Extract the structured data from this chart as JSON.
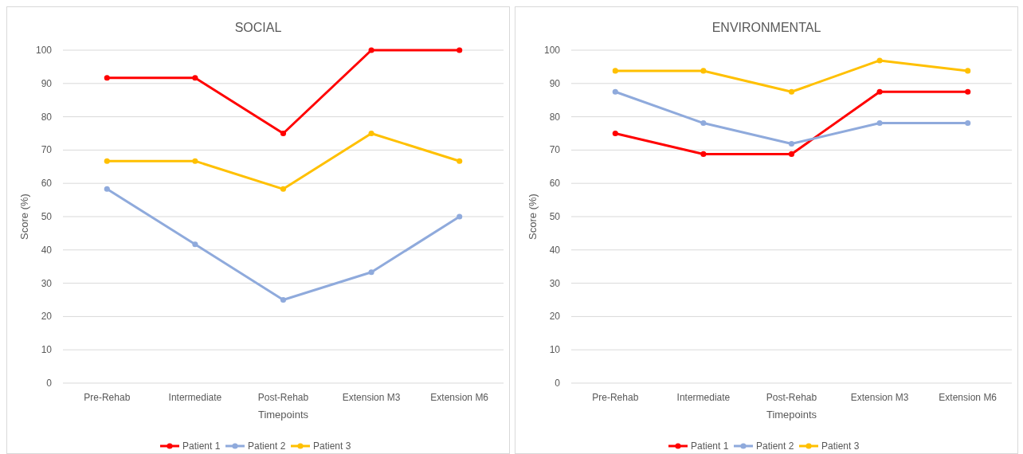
{
  "chart_data": [
    {
      "type": "line",
      "title": "SOCIAL",
      "xlabel": "Timepoints",
      "ylabel": "Score  (%)",
      "categories": [
        "Pre-Rehab",
        "Intermediate",
        "Post-Rehab",
        "Extension M3",
        "Extension M6"
      ],
      "series": [
        {
          "name": "Patient 1",
          "color": "#ff0000",
          "values": [
            91.7,
            91.7,
            75,
            100,
            100
          ]
        },
        {
          "name": "Patient 2",
          "color": "#8faadc",
          "values": [
            58.3,
            41.7,
            25,
            33.3,
            50
          ]
        },
        {
          "name": "Patient 3",
          "color": "#ffc000",
          "values": [
            66.7,
            66.7,
            58.3,
            75,
            66.7
          ]
        }
      ],
      "ylim": [
        0,
        100
      ],
      "yticks": [
        0,
        10,
        20,
        30,
        40,
        50,
        60,
        70,
        80,
        90,
        100
      ],
      "grid": "y",
      "legend": "bottom",
      "marker": "circle",
      "line_style": "solid"
    },
    {
      "type": "line",
      "title": "ENVIRONMENTAL",
      "xlabel": "Timepoints",
      "ylabel": "Score  (%)",
      "categories": [
        "Pre-Rehab",
        "Intermediate",
        "Post-Rehab",
        "Extension M3",
        "Extension M6"
      ],
      "series": [
        {
          "name": "Patient 1",
          "color": "#ff0000",
          "values": [
            75,
            68.8,
            68.8,
            87.5,
            87.5
          ]
        },
        {
          "name": "Patient 2",
          "color": "#8faadc",
          "values": [
            87.5,
            78.1,
            71.9,
            78.1,
            78.1
          ]
        },
        {
          "name": "Patient 3",
          "color": "#ffc000",
          "values": [
            93.8,
            93.8,
            87.5,
            96.9,
            93.8
          ]
        }
      ],
      "ylim": [
        0,
        100
      ],
      "yticks": [
        0,
        10,
        20,
        30,
        40,
        50,
        60,
        70,
        80,
        90,
        100
      ],
      "grid": "y",
      "legend": "bottom",
      "marker": "circle",
      "line_style": "solid"
    }
  ]
}
